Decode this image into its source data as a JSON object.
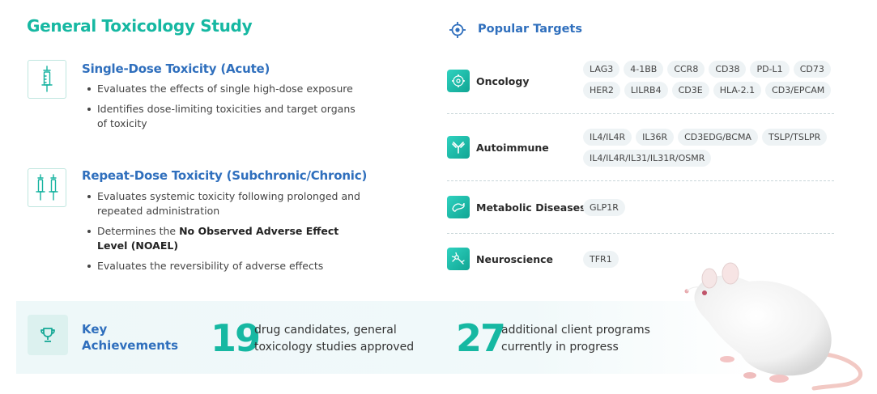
{
  "main_title": "General Toxicology Study",
  "sections": [
    {
      "title": "Single-Dose Toxicity (Acute)",
      "icon": "syringe-icon",
      "bullets": [
        "Evaluates the effects of single high-dose exposure",
        "Identifies dose-limiting toxicities and target organs of toxicity"
      ]
    },
    {
      "title": "Repeat-Dose Toxicity (Subchronic/Chronic)",
      "icon": "double-syringe-icon",
      "bullets": [
        "Evaluates systemic toxicity following prolonged and repeated administration",
        {
          "prefix": "Determines the ",
          "bold": "No Observed Adverse Effect Level (NOAEL)"
        },
        "Evaluates the reversibility of adverse effects"
      ]
    }
  ],
  "targets": {
    "title": "Popular Targets",
    "icon": "target-icon",
    "categories": [
      {
        "label": "Oncology",
        "icon": "cell-icon",
        "pills": [
          "LAG3",
          "4-1BB",
          "CCR8",
          "CD38",
          "PD-L1",
          "CD73",
          "HER2",
          "LILRB4",
          "CD3E",
          "HLA-2.1",
          "CD3/EPCAM"
        ]
      },
      {
        "label": "Autoimmune",
        "icon": "antibody-icon",
        "pills": [
          "IL4/IL4R",
          "IL36R",
          "CD3EDG/BCMA",
          "TSLP/TSLPR",
          "IL4/IL4R/IL31/IL31R/OSMR"
        ]
      },
      {
        "label": "Metabolic Diseases",
        "icon": "pancreas-icon",
        "pills": [
          "GLP1R"
        ]
      },
      {
        "label": "Neuroscience",
        "icon": "neuron-icon",
        "pills": [
          "TFR1"
        ]
      }
    ]
  },
  "achievements": {
    "label": "Key Achievements",
    "label_line1": "Key",
    "label_line2": "Achievements",
    "icon": "trophy-icon",
    "stats": [
      {
        "number": "19",
        "line1": "drug candidates, general",
        "line2": "toxicology studies approved"
      },
      {
        "number": "27",
        "line1": "additional client programs",
        "line2": "currently in progress"
      }
    ]
  },
  "image": {
    "name": "white-lab-mouse-image"
  },
  "colors": {
    "accent": "#16b8a2",
    "heading_blue": "#2f6fbd",
    "pill_bg": "#eef3f5",
    "band_bg": "#eef8f9"
  }
}
